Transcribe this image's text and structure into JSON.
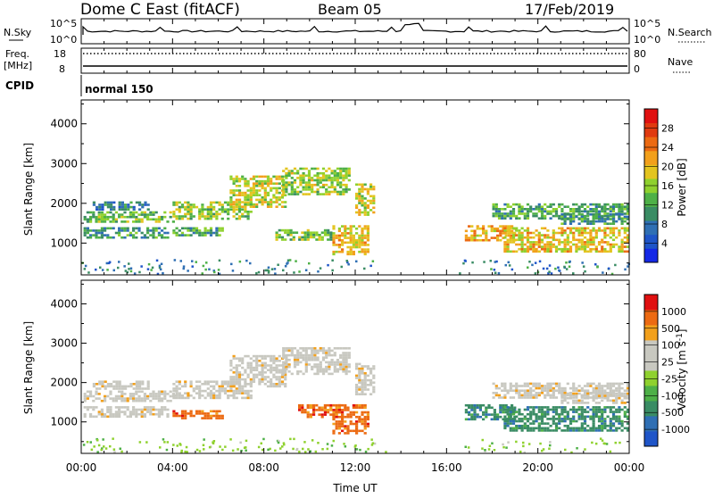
{
  "header": {
    "station": "Dome C East (fitACF)",
    "beam": "Beam 05",
    "date": "17/Feb/2019"
  },
  "top_panels": {
    "nsky_label": "N.Sky",
    "nsky_ticks": [
      "10^5",
      "10^0"
    ],
    "nsearch_label": "N.Search",
    "nsearch_ticks": [
      "10^5",
      "10^0"
    ],
    "freq_label": "Freq.",
    "freq_unit": "[MHz]",
    "freq_ticks": [
      "18",
      "8"
    ],
    "nave_label": "Nave",
    "nave_ticks": [
      "80",
      "0"
    ],
    "cpid_label": "CPID",
    "cpid_value": "normal 150"
  },
  "x_axis": {
    "label": "Time UT",
    "ticks": [
      "00:00",
      "04:00",
      "08:00",
      "12:00",
      "16:00",
      "20:00",
      "00:00"
    ],
    "range_hours": [
      0,
      24
    ]
  },
  "colors": {
    "power": [
      "#1428e6",
      "#1f55c8",
      "#2f6fb4",
      "#3a8c64",
      "#4eb047",
      "#8fd12e",
      "#e3c41f",
      "#f2a01c",
      "#ec6a12",
      "#e03a10",
      "#e01010"
    ],
    "velocity": [
      "#e01010",
      "#ec6a12",
      "#f2a01c",
      "#c8c8c0",
      "#c8c8c0",
      "#8fd12e",
      "#4eb047",
      "#3a8c64",
      "#2f6fb4",
      "#1f55c8"
    ]
  },
  "chart_data": [
    {
      "type": "heatmap",
      "ylabel": "Slant Range [km]",
      "ylim": [
        200,
        4600
      ],
      "yticks": [
        1000,
        2000,
        3000,
        4000
      ],
      "colorbar_label": "Power [dB]",
      "colorbar_ticks": [
        28,
        24,
        20,
        16,
        12,
        8,
        4
      ],
      "color_range": [
        0,
        32
      ],
      "echo_regions": [
        {
          "t": [
            0.1,
            4.0
          ],
          "r": [
            1550,
            1800
          ],
          "v": 14
        },
        {
          "t": [
            0.1,
            3.8
          ],
          "r": [
            1150,
            1400
          ],
          "v": 10
        },
        {
          "t": [
            0.5,
            3.0
          ],
          "r": [
            1850,
            2050
          ],
          "v": 8
        },
        {
          "t": [
            4.0,
            6.2
          ],
          "r": [
            1200,
            1400
          ],
          "v": 12
        },
        {
          "t": [
            4.0,
            7.5
          ],
          "r": [
            1600,
            2050
          ],
          "v": 16
        },
        {
          "t": [
            6.5,
            9.0
          ],
          "r": [
            1900,
            2700
          ],
          "v": 18
        },
        {
          "t": [
            8.8,
            11.8
          ],
          "r": [
            2200,
            2900
          ],
          "v": 16
        },
        {
          "t": [
            8.5,
            11.0
          ],
          "r": [
            1100,
            1350
          ],
          "v": 14
        },
        {
          "t": [
            11.0,
            12.6
          ],
          "r": [
            700,
            1450
          ],
          "v": 20
        },
        {
          "t": [
            12.0,
            12.8
          ],
          "r": [
            1700,
            2500
          ],
          "v": 18
        },
        {
          "t": [
            16.8,
            19.0
          ],
          "r": [
            1050,
            1450
          ],
          "v": 22
        },
        {
          "t": [
            18.5,
            23.9
          ],
          "r": [
            800,
            1400
          ],
          "v": 20
        },
        {
          "t": [
            18.0,
            23.9
          ],
          "r": [
            1600,
            2000
          ],
          "v": 12
        },
        {
          "t": [
            21.0,
            23.9
          ],
          "r": [
            1500,
            1750
          ],
          "v": 10
        }
      ]
    },
    {
      "type": "heatmap",
      "ylabel": "Slant Range [km]",
      "ylim": [
        200,
        4600
      ],
      "yticks": [
        1000,
        2000,
        3000,
        4000
      ],
      "colorbar_label": "Velocity [m s^-1]",
      "colorbar_ticks": [
        1000,
        500,
        100,
        25,
        -25,
        -100,
        -500,
        -1000
      ],
      "echo_regions": [
        {
          "t": [
            0.1,
            4.0
          ],
          "r": [
            1550,
            1800
          ],
          "c": 3
        },
        {
          "t": [
            0.1,
            3.8
          ],
          "r": [
            1150,
            1400
          ],
          "c": 3
        },
        {
          "t": [
            0.5,
            3.0
          ],
          "r": [
            1850,
            2050
          ],
          "c": 3
        },
        {
          "t": [
            4.0,
            6.2
          ],
          "r": [
            1100,
            1300
          ],
          "c": 1
        },
        {
          "t": [
            4.0,
            7.5
          ],
          "r": [
            1600,
            2050
          ],
          "c": 3
        },
        {
          "t": [
            6.5,
            9.0
          ],
          "r": [
            1900,
            2700
          ],
          "c": 3
        },
        {
          "t": [
            8.8,
            11.8
          ],
          "r": [
            2200,
            2900
          ],
          "c": 3
        },
        {
          "t": [
            9.5,
            11.5
          ],
          "r": [
            1100,
            1450
          ],
          "c": 1
        },
        {
          "t": [
            11.0,
            12.6
          ],
          "r": [
            700,
            1450
          ],
          "c": 1
        },
        {
          "t": [
            12.0,
            12.8
          ],
          "r": [
            1700,
            2500
          ],
          "c": 3
        },
        {
          "t": [
            16.8,
            19.0
          ],
          "r": [
            1050,
            1450
          ],
          "c": 7
        },
        {
          "t": [
            18.5,
            23.9
          ],
          "r": [
            800,
            1400
          ],
          "c": 7
        },
        {
          "t": [
            18.0,
            23.9
          ],
          "r": [
            1600,
            2000
          ],
          "c": 3
        },
        {
          "t": [
            21.0,
            23.9
          ],
          "r": [
            1500,
            1750
          ],
          "c": 3
        }
      ]
    }
  ]
}
